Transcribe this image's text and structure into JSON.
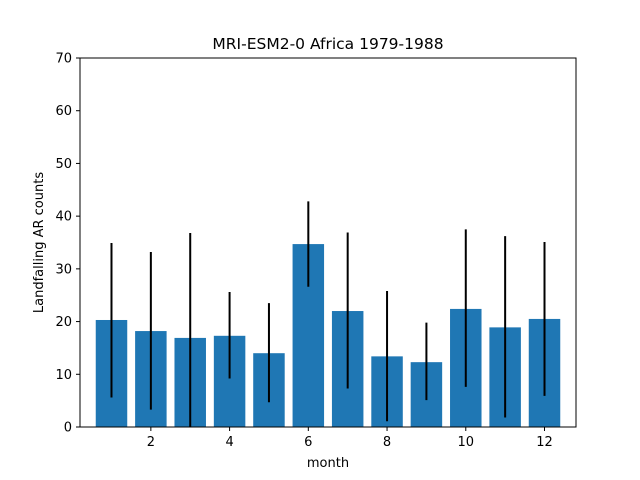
{
  "chart_data": {
    "type": "bar",
    "title": "MRI-ESM2-0 Africa 1979-1988",
    "xlabel": "month",
    "ylabel": "Landfalling AR counts",
    "x": [
      1,
      2,
      3,
      4,
      5,
      6,
      7,
      8,
      9,
      10,
      11,
      12
    ],
    "values": [
      20.3,
      18.2,
      16.9,
      17.3,
      14.0,
      34.7,
      22.0,
      13.4,
      12.3,
      22.4,
      18.9,
      20.5
    ],
    "error_low": [
      5.6,
      3.3,
      0.0,
      9.2,
      4.7,
      26.6,
      7.3,
      1.1,
      5.1,
      7.6,
      1.8,
      5.9
    ],
    "error_high": [
      34.9,
      33.2,
      36.8,
      25.6,
      23.5,
      42.8,
      36.9,
      25.8,
      19.8,
      37.5,
      36.2,
      35.1
    ],
    "xlim": [
      0.2,
      12.8
    ],
    "ylim": [
      0,
      70
    ],
    "xticks": [
      2,
      4,
      6,
      8,
      10,
      12
    ],
    "yticks": [
      0,
      10,
      20,
      30,
      40,
      50,
      60,
      70
    ],
    "grid": false,
    "bar_color": "#1f77b4",
    "error_color": "#000000"
  }
}
